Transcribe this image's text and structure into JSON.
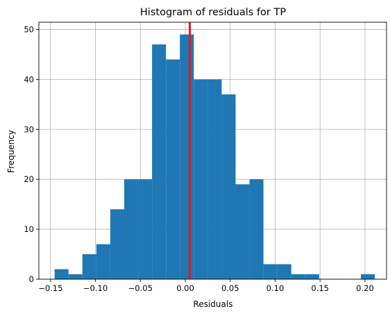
{
  "chart_data": {
    "type": "bar",
    "title": "Histogram of residuals for TP",
    "xlabel": "Residuals",
    "ylabel": "Frequency",
    "xlim": [
      -0.163,
      0.224
    ],
    "ylim": [
      0,
      51.45
    ],
    "xticks": [
      -0.15,
      -0.1,
      -0.05,
      0.0,
      0.05,
      0.1,
      0.15,
      0.2
    ],
    "xtick_labels": [
      "−0.15",
      "−0.10",
      "−0.05",
      "0.00",
      "0.05",
      "0.10",
      "0.15",
      "0.20"
    ],
    "yticks": [
      0,
      10,
      20,
      30,
      40,
      50
    ],
    "ytick_labels": [
      "0",
      "10",
      "20",
      "30",
      "40",
      "50"
    ],
    "grid": true,
    "bar_color": "#1f77b4",
    "vline": {
      "x": 0.005,
      "color": "#e41a1c"
    },
    "bins": [
      {
        "x0": -0.1455,
        "x1": -0.13,
        "count": 2
      },
      {
        "x0": -0.13,
        "x1": -0.1145,
        "count": 1
      },
      {
        "x0": -0.1145,
        "x1": -0.099,
        "count": 5
      },
      {
        "x0": -0.099,
        "x1": -0.0835,
        "count": 7
      },
      {
        "x0": -0.0835,
        "x1": -0.068,
        "count": 14
      },
      {
        "x0": -0.068,
        "x1": -0.0525,
        "count": 20
      },
      {
        "x0": -0.0525,
        "x1": -0.037,
        "count": 20
      },
      {
        "x0": -0.037,
        "x1": -0.0215,
        "count": 47
      },
      {
        "x0": -0.0215,
        "x1": -0.006,
        "count": 44
      },
      {
        "x0": -0.006,
        "x1": 0.0095,
        "count": 49
      },
      {
        "x0": 0.0095,
        "x1": 0.025,
        "count": 40
      },
      {
        "x0": 0.025,
        "x1": 0.0405,
        "count": 40
      },
      {
        "x0": 0.0405,
        "x1": 0.056,
        "count": 37
      },
      {
        "x0": 0.056,
        "x1": 0.0715,
        "count": 19
      },
      {
        "x0": 0.0715,
        "x1": 0.087,
        "count": 20
      },
      {
        "x0": 0.087,
        "x1": 0.1025,
        "count": 3
      },
      {
        "x0": 0.1025,
        "x1": 0.118,
        "count": 3
      },
      {
        "x0": 0.118,
        "x1": 0.1335,
        "count": 1
      },
      {
        "x0": 0.1335,
        "x1": 0.149,
        "count": 1
      },
      {
        "x0": 0.149,
        "x1": 0.1645,
        "count": 0
      },
      {
        "x0": 0.1645,
        "x1": 0.18,
        "count": 0
      },
      {
        "x0": 0.18,
        "x1": 0.1955,
        "count": 0
      },
      {
        "x0": 0.1955,
        "x1": 0.211,
        "count": 1
      }
    ]
  }
}
